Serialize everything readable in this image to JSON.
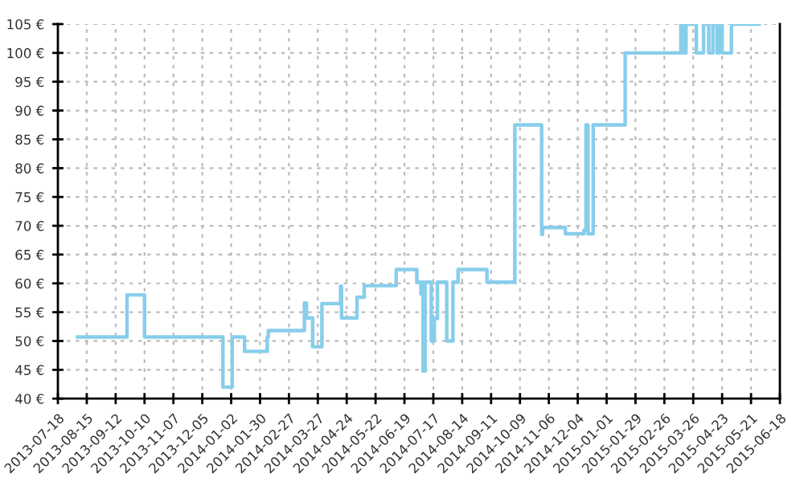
{
  "chart_data": {
    "type": "step",
    "x": [
      "2013-08-06",
      "2013-09-23",
      "2013-10-10",
      "2013-12-25",
      "2014-01-03",
      "2014-01-15",
      "2014-02-06",
      "2014-02-07",
      "2014-03-14",
      "2014-03-16",
      "2014-03-22",
      "2014-03-31",
      "2014-04-18",
      "2014-04-19",
      "2014-05-04",
      "2014-05-11",
      "2014-06-11",
      "2014-07-01",
      "2014-07-05",
      "2014-07-06",
      "2014-07-07",
      "2014-07-09",
      "2014-07-15",
      "2014-07-18",
      "2014-07-21",
      "2014-07-30",
      "2014-08-05",
      "2014-08-10",
      "2014-09-07",
      "2014-10-04",
      "2014-10-30",
      "2014-10-31",
      "2014-11-07",
      "2014-11-22",
      "2014-12-10",
      "2014-12-12",
      "2014-12-14",
      "2014-12-19",
      "2015-01-19",
      "2015-03-14",
      "2015-03-16",
      "2015-03-19",
      "2015-03-29",
      "2015-04-05",
      "2015-04-10",
      "2015-04-14",
      "2015-04-18",
      "2015-04-20",
      "2015-04-23",
      "2015-05-02",
      "2015-05-29"
    ],
    "series": [
      {
        "color": "#87ceeb",
        "values": [
          50.7,
          58,
          50.7,
          42,
          50.7,
          48.2,
          50.7,
          51.8,
          56.6,
          54,
          49,
          56.5,
          59.5,
          54,
          57.6,
          59.6,
          62.4,
          60.2,
          58.2,
          60.2,
          44.8,
          60.2,
          50,
          53.9,
          60.2,
          50,
          60.2,
          62.4,
          60.2,
          87.5,
          68.5,
          69.7,
          69.7,
          68.6,
          69.2,
          87.5,
          68.6,
          87.5,
          100,
          105,
          100,
          105,
          100,
          105,
          100,
          105,
          100,
          105,
          100,
          105,
          105
        ]
      }
    ],
    "xlim": [
      "2013-07-18",
      "2015-06-18"
    ],
    "xticks": [
      "2013-07-18",
      "2013-08-15",
      "2013-09-12",
      "2013-10-10",
      "2013-11-07",
      "2013-12-05",
      "2014-01-02",
      "2014-01-30",
      "2014-02-27",
      "2014-03-27",
      "2014-04-24",
      "2014-05-22",
      "2014-06-19",
      "2014-07-17",
      "2014-08-14",
      "2014-09-11",
      "2014-10-09",
      "2014-11-06",
      "2014-12-04",
      "2015-01-01",
      "2015-01-29",
      "2015-02-26",
      "2015-03-26",
      "2015-04-23",
      "2015-05-21",
      "2015-06-18"
    ],
    "ylim": [
      40,
      105
    ],
    "yticks": [
      {
        "value": 40,
        "label": "40 €"
      },
      {
        "value": 45,
        "label": "45 €"
      },
      {
        "value": 50,
        "label": "50 €"
      },
      {
        "value": 55,
        "label": "55 €"
      },
      {
        "value": 60,
        "label": "60 €"
      },
      {
        "value": 65,
        "label": "65 €"
      },
      {
        "value": 70,
        "label": "70 €"
      },
      {
        "value": 75,
        "label": "75 €"
      },
      {
        "value": 80,
        "label": "80 €"
      },
      {
        "value": 85,
        "label": "85 €"
      },
      {
        "value": 90,
        "label": "90 €"
      },
      {
        "value": 95,
        "label": "95 €"
      },
      {
        "value": 100,
        "label": "100 €"
      },
      {
        "value": 105,
        "label": "105 €"
      }
    ],
    "grid": true,
    "line_style": "solid"
  }
}
